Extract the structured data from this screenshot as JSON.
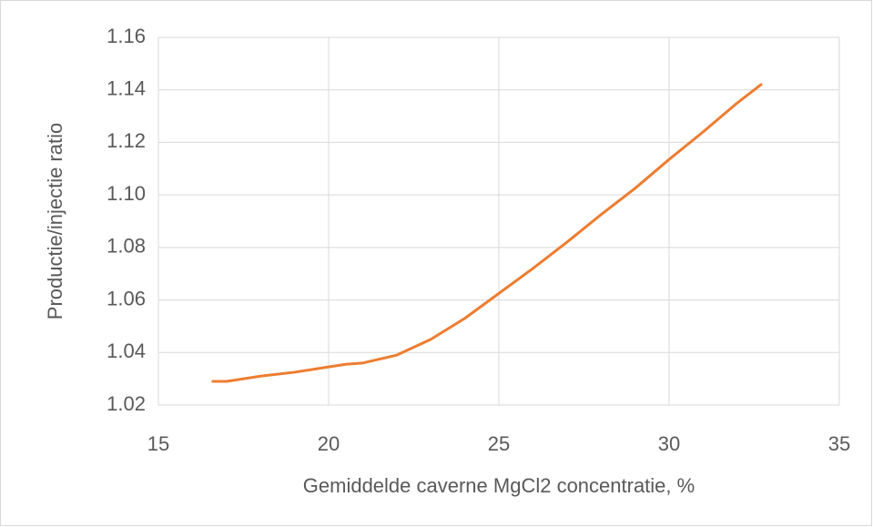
{
  "chart_data": {
    "type": "line",
    "x_label": "Gemiddelde caverne MgCl2 concentratie, %",
    "y_label": "Productie/injectie ratio",
    "x": [
      16.6,
      17,
      18,
      19,
      20,
      20.5,
      21,
      22,
      23,
      24,
      25,
      26,
      27,
      28,
      29,
      30,
      31,
      32,
      32.7
    ],
    "series": [
      {
        "name": "Productie/injectie ratio",
        "color": "#ed7d31",
        "values": [
          1.029,
          1.029,
          1.031,
          1.0325,
          1.0345,
          1.0355,
          1.036,
          1.039,
          1.045,
          1.053,
          1.0625,
          1.072,
          1.082,
          1.0925,
          1.1025,
          1.1135,
          1.124,
          1.135,
          1.142
        ]
      }
    ],
    "xlim": [
      15,
      35
    ],
    "xticks": [
      15,
      20,
      25,
      30,
      35
    ],
    "ylim": [
      1.02,
      1.16
    ],
    "yticks": [
      1.02,
      1.04,
      1.06,
      1.08,
      {
        "value": 1.1,
        "label": "1.10"
      },
      1.12,
      1.14,
      1.16
    ],
    "grid": true
  }
}
